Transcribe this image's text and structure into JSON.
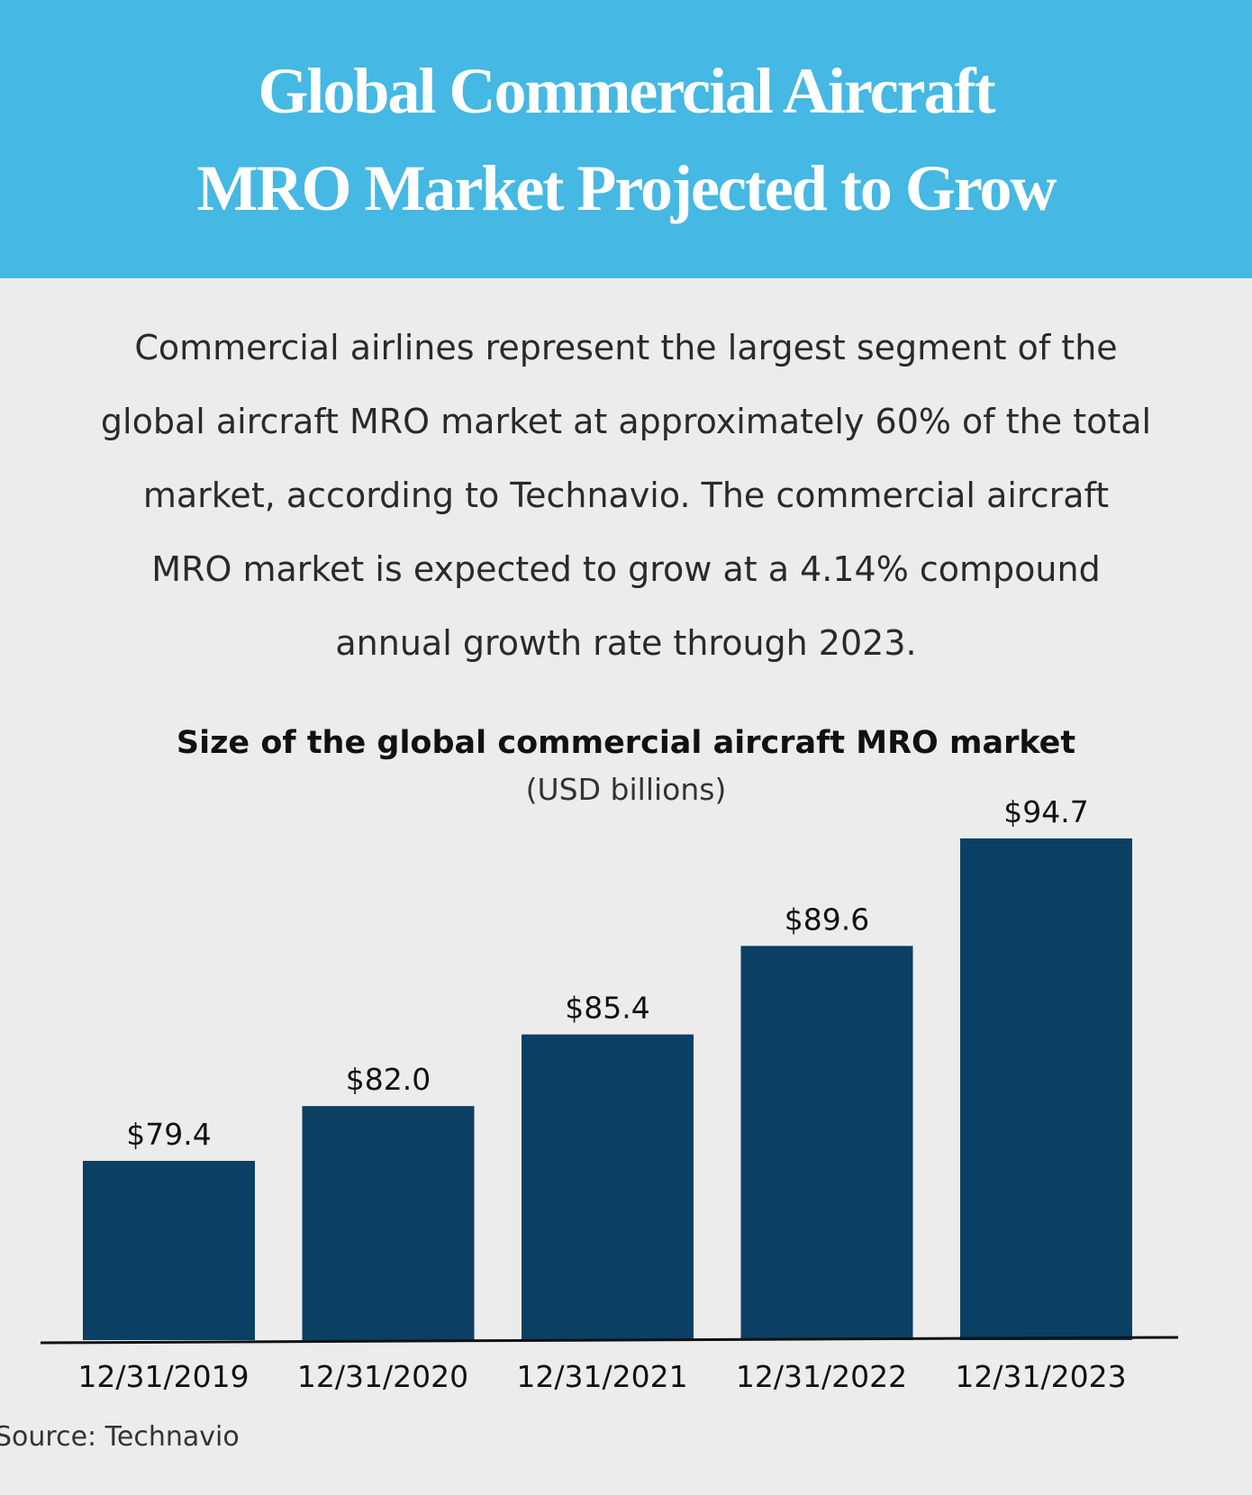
{
  "header": {
    "title_line1": "Global Commercial Aircraft",
    "title_line2": "MRO Market Projected to Grow"
  },
  "intro": {
    "lines": [
      "Commercial airlines represent the largest segment of the",
      "global aircraft MRO market at approximately 60% of the total",
      "market, according to Technavio. The commercial aircraft",
      "MRO market is expected to grow at a 4.14% compound",
      "annual growth rate through 2023."
    ]
  },
  "source": "Source: Technavio",
  "colors": {
    "header_bg": "#45b8e3",
    "bar": "#0b4064",
    "background": "#ececec"
  },
  "chart_data": {
    "type": "bar",
    "title": "Size of the global commercial aircraft MRO market",
    "subtitle": "(USD billions)",
    "xlabel": "",
    "ylabel": "",
    "categories": [
      "12/31/2019",
      "12/31/2020",
      "12/31/2021",
      "12/31/2022",
      "12/31/2023"
    ],
    "values": [
      79.4,
      82.0,
      85.4,
      89.6,
      94.7
    ],
    "value_labels": [
      "$79.4",
      "$82.0",
      "$85.4",
      "$89.6",
      "$94.7"
    ],
    "grid": false,
    "legend": "none"
  }
}
